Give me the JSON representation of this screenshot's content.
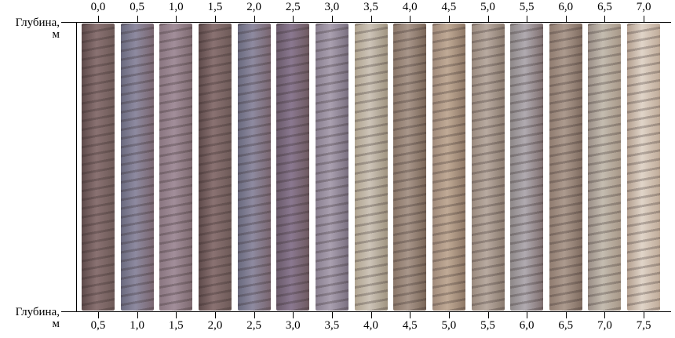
{
  "axis_title": "Глубина,",
  "axis_unit": "м",
  "top_labels": [
    "0,0",
    "0,5",
    "1,0",
    "1,5",
    "2,0",
    "2,5",
    "3,0",
    "3,5",
    "4,0",
    "4,5",
    "5,0",
    "5,5",
    "6,0",
    "6,5",
    "7,0"
  ],
  "bottom_labels": [
    "0,5",
    "1,0",
    "1,5",
    "2,0",
    "2,5",
    "3,0",
    "3,5",
    "4,0",
    "4,5",
    "5,0",
    "5,5",
    "6,0",
    "6,5",
    "7,0",
    "7,5"
  ],
  "core_colors": [
    [
      "#5e4a4a",
      "#8a7272",
      "#6e5a58"
    ],
    [
      "#6a6a7e",
      "#8e8aa0",
      "#7a6670"
    ],
    [
      "#8a7680",
      "#a28e9a",
      "#7e6a70"
    ],
    [
      "#5e4a4a",
      "#8a7272",
      "#6e5a58"
    ],
    [
      "#6a6a7e",
      "#8e8aa0",
      "#7a6670"
    ],
    [
      "#6a5a6a",
      "#8a7890",
      "#6e5a60"
    ],
    [
      "#8a8090",
      "#aaa0b0",
      "#7a7080"
    ],
    [
      "#b0a490",
      "#cdc4b8",
      "#a09480"
    ],
    [
      "#8a7668",
      "#a8968a",
      "#7a6658"
    ],
    [
      "#a08a7a",
      "#c0aa96",
      "#8e7866"
    ],
    [
      "#9a8a7e",
      "#b8aaa0",
      "#8a7a6e"
    ],
    [
      "#8e8888",
      "#b0aab0",
      "#807070"
    ],
    [
      "#907c70",
      "#ac9a8e",
      "#806c60"
    ],
    [
      "#9a8e86",
      "#c4bcb0",
      "#a89888"
    ],
    [
      "#b4a090",
      "#e0d4c8",
      "#c0ac9a"
    ]
  ]
}
